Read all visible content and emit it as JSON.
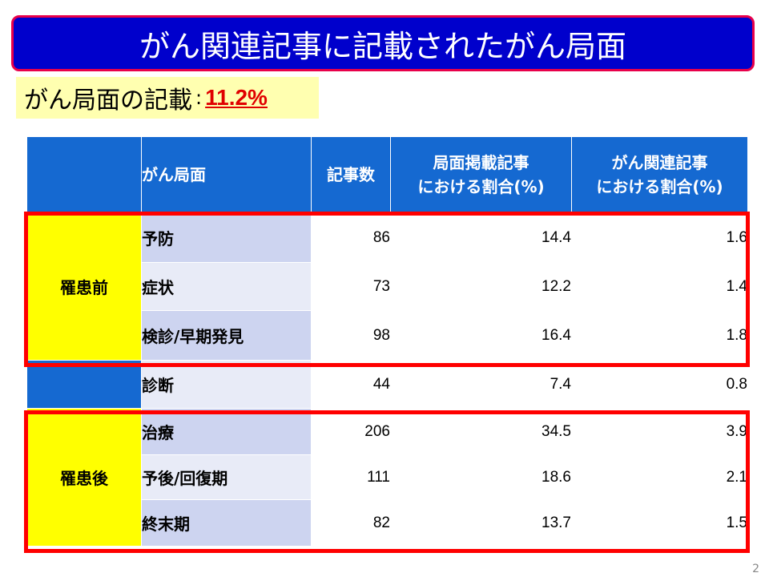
{
  "slide": {
    "title": "がん関連記事に記載されたがん局面",
    "summary_label": "がん局面の記載",
    "summary_colon": ":",
    "summary_value": "11.2%",
    "page_number": "2"
  },
  "table": {
    "headers": {
      "phase": "がん局面",
      "count": "記事数",
      "ratio_phase_line1": "局面掲載記事",
      "ratio_phase_line2": "における割合(%)",
      "ratio_cancer_line1": "がん関連記事",
      "ratio_cancer_line2": "における割合(%)"
    },
    "groups": {
      "before": "罹患前",
      "after": "罹患後"
    },
    "rows": [
      {
        "phase": "予防",
        "count": "86",
        "ratio_phase": "14.4",
        "ratio_cancer": "1.6"
      },
      {
        "phase": "症状",
        "count": "73",
        "ratio_phase": "12.2",
        "ratio_cancer": "1.4"
      },
      {
        "phase": "検診/早期発見",
        "count": "98",
        "ratio_phase": "16.4",
        "ratio_cancer": "1.8"
      },
      {
        "phase": "診断",
        "count": "44",
        "ratio_phase": "7.4",
        "ratio_cancer": "0.8"
      },
      {
        "phase": "治療",
        "count": "206",
        "ratio_phase": "34.5",
        "ratio_cancer": "3.9"
      },
      {
        "phase": "予後/回復期",
        "count": "111",
        "ratio_phase": "18.6",
        "ratio_cancer": "2.1"
      },
      {
        "phase": "終末期",
        "count": "82",
        "ratio_phase": "13.7",
        "ratio_cancer": "1.5"
      }
    ]
  },
  "colors": {
    "title_background": "#0000cc",
    "title_border": "#e8004a",
    "header_blue": "#1569d1",
    "group_yellow": "#ffff00",
    "highlight_red": "#ff0000",
    "summary_background": "#ffffb0"
  }
}
